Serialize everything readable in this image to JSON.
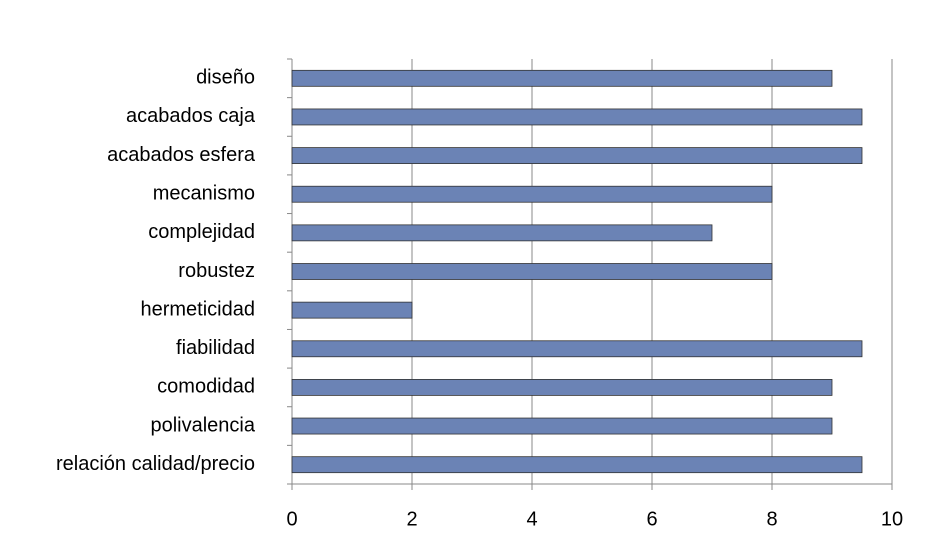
{
  "chart_data": {
    "type": "bar",
    "categories": [
      "diseño",
      "acabados caja",
      "acabados esfera",
      "mecanismo",
      "complejidad",
      "robustez",
      "hermeticidad",
      "fiabilidad",
      "comodidad",
      "polivalencia",
      "relación calidad/precio"
    ],
    "values": [
      9,
      9.5,
      9.5,
      8,
      7,
      8,
      2,
      9.5,
      9,
      9,
      9.5
    ],
    "color": "#6b83b5",
    "xlim": [
      0,
      10
    ],
    "xticks": [
      0,
      2,
      4,
      6,
      8,
      10
    ],
    "grid": true
  }
}
